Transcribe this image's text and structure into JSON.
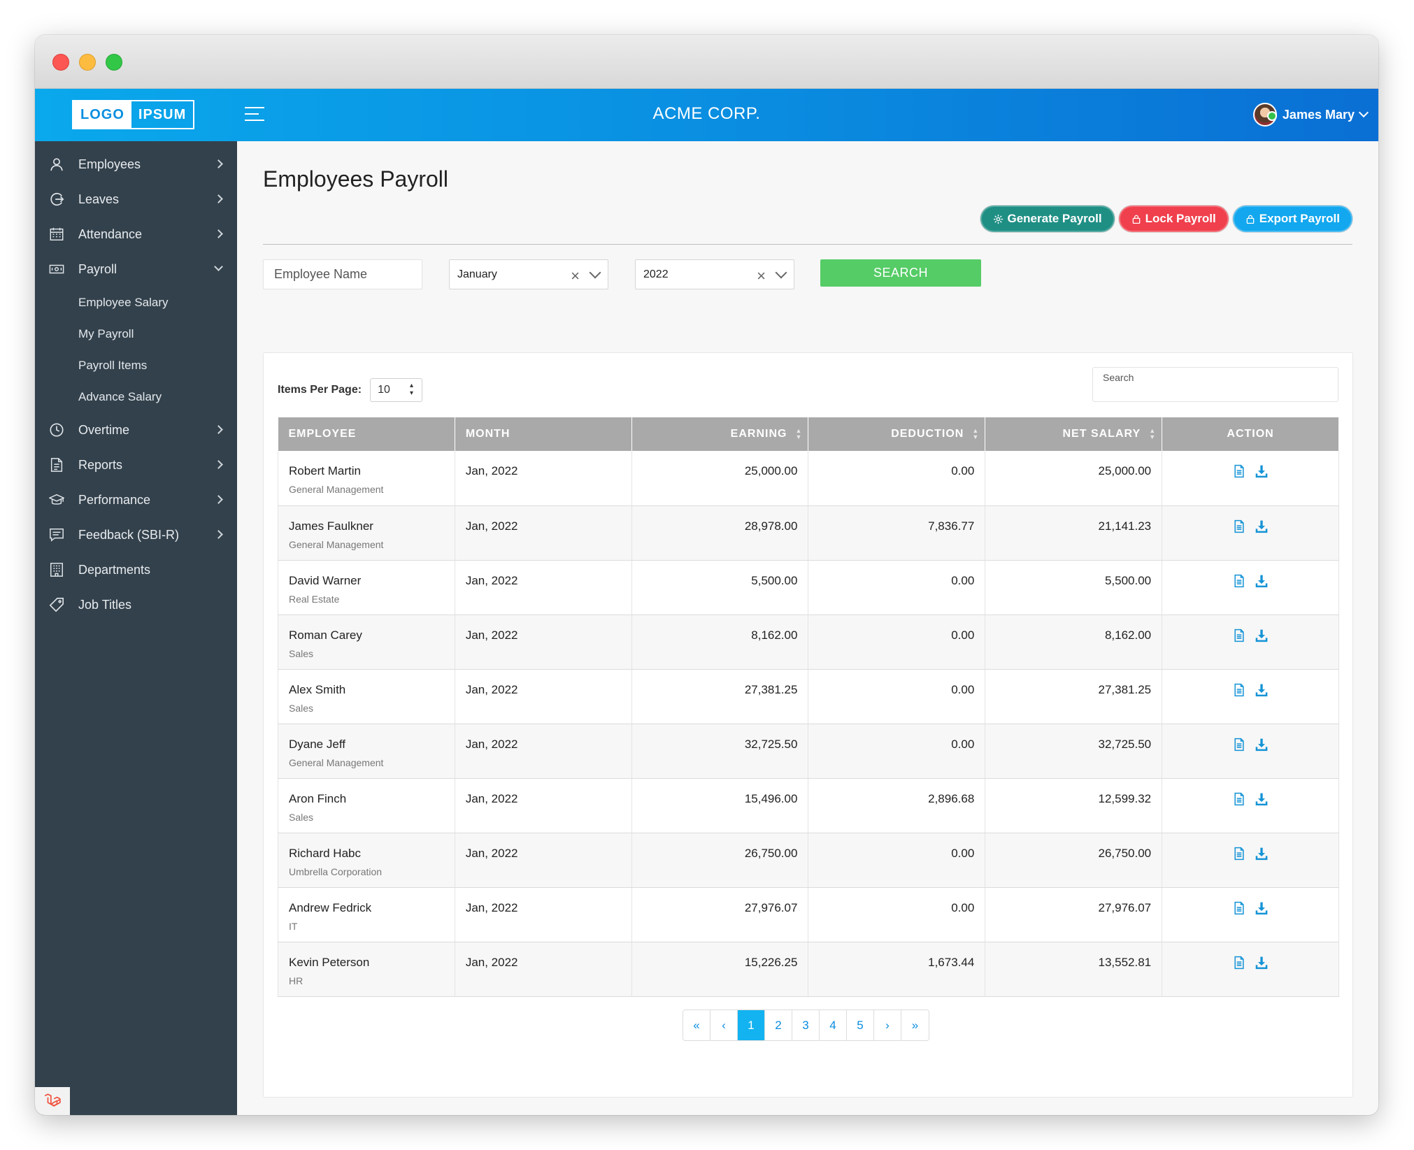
{
  "header": {
    "logo_part1": "LOGO",
    "logo_part2": "IPSUM",
    "company": "ACME CORP.",
    "user_name": "James Mary"
  },
  "sidebar": {
    "items": [
      {
        "label": "Employees",
        "icon": "user-icon"
      },
      {
        "label": "Leaves",
        "icon": "exit-icon"
      },
      {
        "label": "Attendance",
        "icon": "calendar-icon"
      },
      {
        "label": "Payroll",
        "icon": "money-icon"
      },
      {
        "label": "Overtime",
        "icon": "clock-icon"
      },
      {
        "label": "Reports",
        "icon": "document-icon"
      },
      {
        "label": "Performance",
        "icon": "graduation-cap-icon"
      },
      {
        "label": "Feedback (SBI-R)",
        "icon": "feedback-icon"
      },
      {
        "label": "Departments",
        "icon": "building-icon"
      },
      {
        "label": "Job Titles",
        "icon": "tag-icon"
      }
    ],
    "payroll_sub": [
      "Employee Salary",
      "My Payroll",
      "Payroll Items",
      "Advance Salary"
    ]
  },
  "page": {
    "title": "Employees Payroll",
    "buttons": {
      "generate": "Generate Payroll",
      "lock": "Lock Payroll",
      "export": "Export Payroll"
    }
  },
  "filters": {
    "employee_placeholder": "Employee Name",
    "month": "January",
    "year": "2022",
    "search_label": "SEARCH"
  },
  "table": {
    "items_per_page_label": "Items Per Page:",
    "items_per_page": "10",
    "search_placeholder": "Search",
    "headers": [
      "EMPLOYEE",
      "MONTH",
      "EARNING",
      "DEDUCTION",
      "NET SALARY",
      "ACTION"
    ],
    "rows": [
      {
        "name": "Robert Martin",
        "dept": "General Management",
        "month": "Jan, 2022",
        "earning": "25,000.00",
        "deduction": "0.00",
        "net": "25,000.00"
      },
      {
        "name": "James Faulkner",
        "dept": "General Management",
        "month": "Jan, 2022",
        "earning": "28,978.00",
        "deduction": "7,836.77",
        "net": "21,141.23"
      },
      {
        "name": "David Warner",
        "dept": "Real Estate",
        "month": "Jan, 2022",
        "earning": "5,500.00",
        "deduction": "0.00",
        "net": "5,500.00"
      },
      {
        "name": "Roman Carey",
        "dept": "Sales",
        "month": "Jan, 2022",
        "earning": "8,162.00",
        "deduction": "0.00",
        "net": "8,162.00"
      },
      {
        "name": "Alex Smith",
        "dept": "Sales",
        "month": "Jan, 2022",
        "earning": "27,381.25",
        "deduction": "0.00",
        "net": "27,381.25"
      },
      {
        "name": "Dyane Jeff",
        "dept": "General Management",
        "month": "Jan, 2022",
        "earning": "32,725.50",
        "deduction": "0.00",
        "net": "32,725.50"
      },
      {
        "name": "Aron Finch",
        "dept": "Sales",
        "month": "Jan, 2022",
        "earning": "15,496.00",
        "deduction": "2,896.68",
        "net": "12,599.32"
      },
      {
        "name": "Richard Habc",
        "dept": "Umbrella Corporation",
        "month": "Jan, 2022",
        "earning": "26,750.00",
        "deduction": "0.00",
        "net": "26,750.00"
      },
      {
        "name": "Andrew Fedrick",
        "dept": "IT",
        "month": "Jan, 2022",
        "earning": "27,976.07",
        "deduction": "0.00",
        "net": "27,976.07"
      },
      {
        "name": "Kevin Peterson",
        "dept": "HR",
        "month": "Jan, 2022",
        "earning": "15,226.25",
        "deduction": "1,673.44",
        "net": "13,552.81"
      }
    ]
  },
  "pagination": {
    "first": "«",
    "prev": "‹",
    "pages": [
      "1",
      "2",
      "3",
      "4",
      "5"
    ],
    "active": "1",
    "next": "›",
    "last": "»"
  },
  "colors": {
    "topbar_start": "#0aa8ec",
    "topbar_end": "#0a6fd4",
    "sidebar": "#33414c",
    "generate": "#1f8f84",
    "lock": "#f0404d",
    "export": "#12a7ee",
    "search": "#55cc66"
  }
}
